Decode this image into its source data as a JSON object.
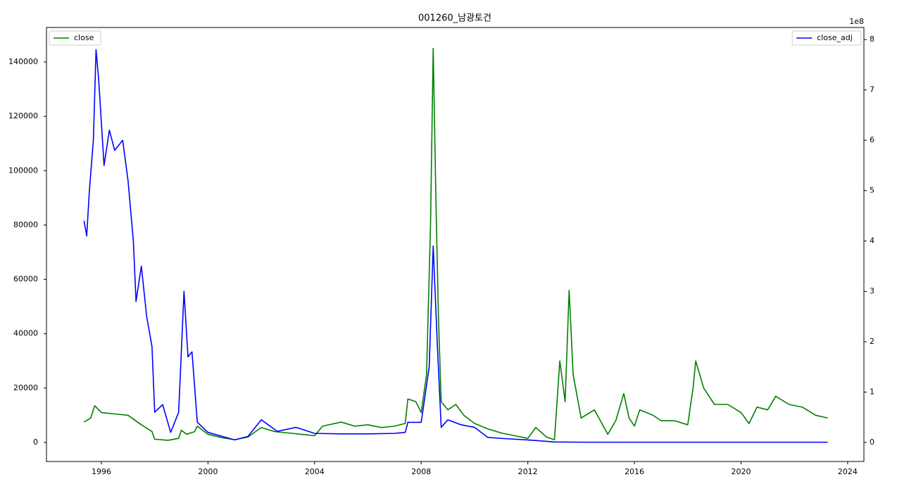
{
  "chart_data": {
    "type": "line",
    "title": "001260_남광토건",
    "xlim": [
      1993.94,
      2024.61
    ],
    "xticks": [
      1996,
      2000,
      2004,
      2008,
      2012,
      2016,
      2020,
      2024
    ],
    "ylim": [
      -7000,
      152700
    ],
    "yticks": [
      0,
      20000,
      40000,
      60000,
      80000,
      100000,
      120000,
      140000
    ],
    "y2lim": [
      -0.378,
      8.24
    ],
    "y2ticks": [
      0,
      1,
      2,
      3,
      4,
      5,
      6,
      7,
      8
    ],
    "y2_offset_label": "1e8",
    "series": [
      {
        "name": "close",
        "color": "#008000",
        "axis": "y",
        "legend": "upper left",
        "x": [
          1995.35,
          1995.6,
          1995.75,
          1996.0,
          1996.5,
          1997.0,
          1997.5,
          1997.9,
          1998.0,
          1998.5,
          1998.9,
          1999.0,
          1999.2,
          1999.5,
          1999.6,
          2000.0,
          2000.5,
          2001.0,
          2001.5,
          2002.0,
          2002.5,
          2003.0,
          2003.5,
          2004.0,
          2004.3,
          2005.0,
          2005.5,
          2006.0,
          2006.5,
          2007.0,
          2007.4,
          2007.5,
          2007.8,
          2008.0,
          2008.2,
          2008.35,
          2008.45,
          2008.55,
          2008.65,
          2008.75,
          2009.0,
          2009.3,
          2009.6,
          2010.0,
          2010.5,
          2011.0,
          2011.5,
          2012.0,
          2012.3,
          2012.7,
          2013.0,
          2013.2,
          2013.4,
          2013.55,
          2013.7,
          2014.0,
          2014.5,
          2015.0,
          2015.3,
          2015.6,
          2015.8,
          2016.0,
          2016.2,
          2016.7,
          2017.0,
          2017.5,
          2018.0,
          2018.2,
          2018.3,
          2018.6,
          2019.0,
          2019.5,
          2020.0,
          2020.3,
          2020.6,
          2021.0,
          2021.3,
          2021.8,
          2022.3,
          2022.8,
          2023.25
        ],
        "values": [
          7500,
          9000,
          13500,
          11000,
          10500,
          10000,
          6500,
          4000,
          1200,
          800,
          1500,
          4500,
          3000,
          4000,
          6000,
          3000,
          1800,
          1000,
          2000,
          5500,
          4000,
          3500,
          3000,
          2500,
          6000,
          7500,
          6000,
          6500,
          5500,
          6000,
          7000,
          16000,
          15000,
          11000,
          25000,
          80000,
          145000,
          90000,
          45000,
          15000,
          12000,
          14000,
          10000,
          7000,
          5000,
          3500,
          2500,
          1500,
          5500,
          2000,
          1000,
          30000,
          15000,
          56000,
          25000,
          9000,
          12000,
          3000,
          8000,
          18000,
          9000,
          6000,
          12000,
          10000,
          8000,
          8000,
          6500,
          20000,
          30000,
          20000,
          14000,
          14000,
          11000,
          7000,
          13000,
          12000,
          17000,
          14000,
          13000,
          10000,
          9000
        ]
      },
      {
        "name": "close_adj",
        "color": "#0000ff",
        "axis": "y2",
        "legend": "upper right",
        "x": [
          1995.35,
          1995.45,
          1995.55,
          1995.7,
          1995.8,
          1995.9,
          1996.1,
          1996.3,
          1996.5,
          1996.8,
          1997.0,
          1997.2,
          1997.3,
          1997.5,
          1997.7,
          1997.9,
          1998.0,
          1998.3,
          1998.6,
          1998.9,
          1999.1,
          1999.25,
          1999.4,
          1999.6,
          2000.0,
          2001.0,
          2001.5,
          2002.0,
          2002.6,
          2003.3,
          2004.0,
          2005.0,
          2006.0,
          2007.0,
          2007.4,
          2007.5,
          2008.0,
          2008.3,
          2008.45,
          2008.6,
          2008.75,
          2009.0,
          2009.5,
          2010.0,
          2010.5,
          2011.0,
          2012.0,
          2013.0,
          2014.0,
          2023.25
        ],
        "values": [
          4.4,
          4.1,
          5.0,
          6.0,
          7.8,
          7.2,
          5.5,
          6.2,
          5.8,
          6.0,
          5.2,
          4.0,
          2.8,
          3.5,
          2.5,
          1.9,
          0.6,
          0.75,
          0.2,
          0.6,
          3.0,
          1.7,
          1.8,
          0.4,
          0.2,
          0.05,
          0.12,
          0.45,
          0.22,
          0.3,
          0.18,
          0.17,
          0.17,
          0.18,
          0.2,
          0.4,
          0.4,
          1.5,
          3.9,
          2.0,
          0.3,
          0.45,
          0.35,
          0.3,
          0.1,
          0.08,
          0.05,
          0.01,
          0.005,
          0.005
        ]
      }
    ]
  }
}
